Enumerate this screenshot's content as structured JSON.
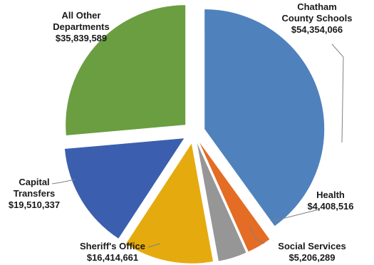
{
  "chart_data": {
    "type": "pie",
    "exploded": true,
    "legend": "none",
    "slices": [
      {
        "name": "Chatham County Schools",
        "label_lines": [
          "Chatham",
          "County Schools"
        ],
        "value_label": "$54,354,066",
        "value": 54354066,
        "color": "#4F81BD"
      },
      {
        "name": "Health",
        "label_lines": [
          "Health"
        ],
        "value_label": "$4,408,516",
        "value": 4408516,
        "color": "#E46C25"
      },
      {
        "name": "Social Services",
        "label_lines": [
          "Social Services"
        ],
        "value_label": "$5,206,289",
        "value": 5206289,
        "color": "#969696"
      },
      {
        "name": "Sheriff's Office",
        "label_lines": [
          "Sheriff's Office"
        ],
        "value_label": "$16,414,661",
        "value": 16414661,
        "color": "#E5AA0E"
      },
      {
        "name": "Capital Transfers",
        "label_lines": [
          "Capital",
          "Transfers"
        ],
        "value_label": "$19,510,337",
        "value": 19510337,
        "color": "#3B5FAE"
      },
      {
        "name": "All Other Departments",
        "label_lines": [
          "All Other",
          "Departments"
        ],
        "value_label": "$35,839,589",
        "value": 35839589,
        "color": "#6A9E41"
      }
    ]
  }
}
